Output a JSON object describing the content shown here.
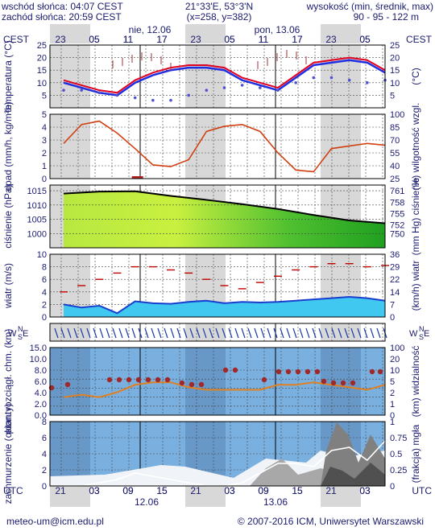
{
  "header": {
    "sunrise": "wschód słońca: 04:07 CEST",
    "sunset": "zachód słońca: 20:59 CEST",
    "coords": "21°33'E, 53°3'N",
    "grid": "(x=258, y=382)",
    "height_label": "wysokość (min, średnik, max)",
    "height_values": "90 - 95 - 122 m"
  },
  "top_axis": {
    "tz": "CEST",
    "hours": [
      "23",
      "05",
      "11",
      "17",
      "23",
      "05",
      "11",
      "17",
      "23",
      "05"
    ],
    "dates": [
      "nie, 12.06",
      "pon, 13.06"
    ]
  },
  "bottom_axis": {
    "tz": "UTC",
    "hours": [
      "21",
      "03",
      "09",
      "15",
      "21",
      "03",
      "09",
      "15",
      "21",
      "03"
    ],
    "dates": [
      "12.06",
      "13.06"
    ]
  },
  "footer": {
    "email": "meteo-um@icm.edu.pl",
    "copyright": "© 2007-2016 ICM, Uniwersytet Warszawski"
  },
  "colors": {
    "temp_max": "#e00020",
    "temp_min": "#2030e0",
    "dew": "#5050d0",
    "humidity": "#d04010",
    "pressure": "#000000",
    "wind": "#1a3fcf",
    "gust": "#c00000",
    "vis": "#e08020",
    "fog": "#ffffff"
  },
  "chart_data": [
    {
      "type": "line",
      "name": "temperatura",
      "ylabel_left": "temperatura (°C)",
      "ylabel_right": "(°C)",
      "ylim": [
        0,
        25
      ],
      "ticks": [
        5,
        10,
        15,
        20,
        25
      ],
      "x_hours_utc": [
        0,
        3,
        6,
        9,
        12,
        15,
        18,
        21,
        24,
        27,
        30,
        33,
        36,
        39,
        42,
        45,
        48,
        51,
        54
      ],
      "series": [
        {
          "values": [
            11,
            9,
            7,
            6,
            11,
            14,
            16,
            17,
            17,
            16,
            12,
            10,
            8,
            13,
            18,
            19,
            20,
            19,
            15
          ]
        },
        {
          "values": [
            10,
            8,
            6,
            5,
            10,
            13,
            15,
            16,
            16,
            15,
            11,
            9,
            7,
            12,
            17,
            18,
            19,
            18,
            14
          ]
        },
        {
          "values": [
            7,
            7,
            6,
            5,
            4,
            3,
            3,
            5,
            7,
            8,
            9,
            8,
            7,
            10,
            12,
            12,
            11,
            10,
            11
          ]
        }
      ]
    },
    {
      "type": "line",
      "name": "opad",
      "ylabel_left": "opad (mm/h, kg/m²h)",
      "ylabel_right": "(%) wilgotność wzgl.",
      "ylim_left": [
        0,
        5
      ],
      "ticks_left": [
        0,
        1,
        2,
        3,
        4,
        5
      ],
      "ylim_right": [
        25,
        100
      ],
      "ticks_right": [
        25,
        40,
        55,
        70,
        85,
        100
      ],
      "x_hours_utc": [
        0,
        3,
        6,
        9,
        12,
        15,
        18,
        21,
        24,
        27,
        30,
        33,
        36,
        39,
        42,
        45,
        48,
        51,
        54
      ],
      "humidity": [
        66,
        88,
        92,
        78,
        60,
        41,
        39,
        47,
        80,
        86,
        88,
        80,
        55,
        35,
        33,
        60,
        63,
        66,
        64
      ],
      "precip": [
        0,
        0,
        0,
        0,
        0.05,
        0,
        0,
        0,
        0,
        0,
        0,
        0,
        0,
        0,
        0,
        0,
        0,
        0,
        0
      ]
    },
    {
      "type": "area",
      "name": "ciśnienie",
      "ylabel_left": "ciśnienie (hPa)",
      "ylabel_right": "(mm Hg) ciśnienie",
      "ylim": [
        995,
        1017
      ],
      "ticks_left": [
        1000,
        1005,
        1010,
        1015
      ],
      "ticks_right": [
        750,
        752,
        755,
        758,
        761
      ],
      "x_hours_utc": [
        0,
        6,
        12,
        18,
        24,
        30,
        36,
        42,
        48,
        54
      ],
      "values": [
        1014,
        1014.7,
        1014.8,
        1013.2,
        1011.8,
        1010.3,
        1008.6,
        1006.5,
        1004.6,
        1003.6
      ]
    },
    {
      "type": "area",
      "name": "wiatr",
      "ylabel_left": "wiatr (m/s)",
      "ylabel_right": "(km/h) wiatr",
      "ylim": [
        0,
        10
      ],
      "ticks_left": [
        0,
        2,
        4,
        6,
        8,
        10
      ],
      "ticks_right": [
        0,
        7,
        14,
        22,
        29,
        36
      ],
      "x_hours_utc": [
        0,
        3,
        6,
        9,
        12,
        15,
        18,
        21,
        24,
        27,
        30,
        33,
        36,
        39,
        42,
        45,
        48,
        51,
        54
      ],
      "wind": [
        2,
        1.5,
        1.8,
        0.6,
        2.5,
        2.2,
        2.1,
        2.4,
        2.6,
        2.2,
        2.4,
        2.3,
        2.4,
        2.6,
        2.8,
        3.0,
        3.2,
        3.0,
        2.6
      ],
      "gust": [
        4,
        5,
        6,
        7,
        8,
        8,
        7.5,
        7,
        6,
        5,
        4.5,
        5.5,
        6.5,
        7.5,
        8,
        8.5,
        8.5,
        8,
        8.2
      ]
    },
    {
      "type": "scatter",
      "name": "widzialność",
      "ylabel_left": "pion. rozciągł. chm. (km)",
      "ylabel_right": "(km) widzialność",
      "ylim_left": [
        0,
        15
      ],
      "ticks_left": [
        "0.0",
        "2.0",
        "4.0",
        "6.0",
        "8.0",
        "10.0",
        "15.0"
      ],
      "ylim_right": [
        0,
        100
      ],
      "ticks_right": [
        0,
        1,
        2,
        5,
        10,
        20,
        100
      ],
      "x_hours_utc": [
        0,
        3,
        6,
        9,
        12,
        15,
        18,
        21,
        24,
        27,
        30,
        33,
        36,
        39,
        42,
        45,
        48,
        51,
        54
      ],
      "visibility_km": [
        4,
        5,
        4,
        6,
        9,
        10,
        10,
        8,
        7,
        7,
        7,
        7,
        9,
        9,
        10,
        9,
        8,
        7,
        9
      ]
    },
    {
      "type": "area",
      "name": "zachmurzenie",
      "ylabel_left": "zachmurzenie (oktanty)",
      "ylabel_right": "(frakcja) mgła",
      "ylim_left": [
        0,
        8
      ],
      "ticks_left": [
        0,
        2,
        4,
        6,
        8
      ],
      "ylim_right": [
        0,
        1
      ],
      "ticks_right": [
        "0",
        "0.25",
        "0.5",
        "0.75",
        "1"
      ],
      "x_hours_utc": [
        0,
        3,
        6,
        9,
        12,
        15,
        18,
        21,
        24,
        27,
        30,
        33,
        36,
        39,
        42,
        45,
        48,
        51,
        54
      ],
      "fog_fraction": [
        0,
        0,
        0.05,
        0.1,
        0.2,
        0.15,
        0.1,
        0.05,
        0,
        0,
        0.05,
        0.2,
        0.35,
        0.35,
        0.3,
        0.55,
        0.6,
        0.4,
        0.7
      ]
    }
  ]
}
